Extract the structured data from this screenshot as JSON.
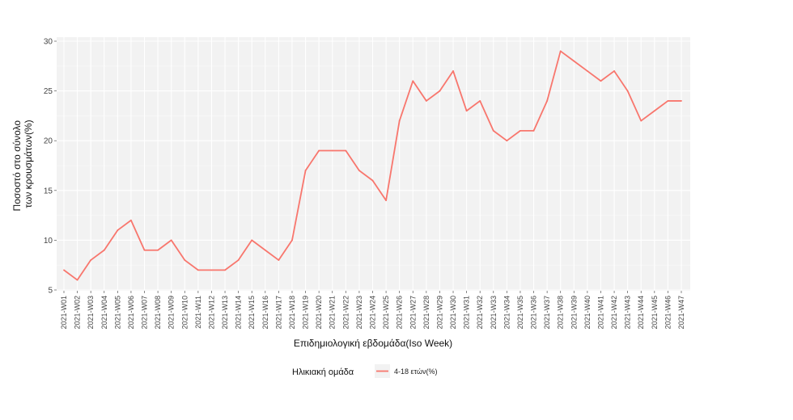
{
  "chart_data": {
    "type": "line",
    "title": "",
    "xlabel": "Επιδημιολογική εβδομάδα(Iso Week)",
    "ylabel_lines": [
      "Ποσοστό στο σύνολο",
      "των κρουσμάτων(%)"
    ],
    "ylim": [
      5,
      30
    ],
    "yticks": [
      5,
      10,
      15,
      20,
      25,
      30
    ],
    "grid": true,
    "legend_position": "bottom",
    "legend_title": "Ηλικιακή ομάδα",
    "categories": [
      "2021-W01",
      "2021-W02",
      "2021-W03",
      "2021-W04",
      "2021-W05",
      "2021-W06",
      "2021-W07",
      "2021-W08",
      "2021-W09",
      "2021-W10",
      "2021-W11",
      "2021-W12",
      "2021-W13",
      "2021-W14",
      "2021-W15",
      "2021-W16",
      "2021-W17",
      "2021-W18",
      "2021-W19",
      "2021-W20",
      "2021-W21",
      "2021-W22",
      "2021-W23",
      "2021-W24",
      "2021-W25",
      "2021-W26",
      "2021-W27",
      "2021-W28",
      "2021-W29",
      "2021-W30",
      "2021-W31",
      "2021-W32",
      "2021-W33",
      "2021-W34",
      "2021-W35",
      "2021-W36",
      "2021-W37",
      "2021-W38",
      "2021-W39",
      "2021-W40",
      "2021-W41",
      "2021-W42",
      "2021-W43",
      "2021-W44",
      "2021-W45",
      "2021-W46",
      "2021-W47"
    ],
    "series": [
      {
        "name": "4-18 ετών(%)",
        "color": "#f8766d",
        "values": [
          7,
          6,
          8,
          9,
          11,
          12,
          9,
          9,
          10,
          8,
          7,
          7,
          7,
          8,
          10,
          9,
          8,
          10,
          17,
          19,
          19,
          19,
          17,
          16,
          14,
          22,
          26,
          24,
          25,
          27,
          23,
          24,
          21,
          20,
          21,
          21,
          24,
          29,
          28,
          27,
          26,
          27,
          25,
          22,
          23,
          24,
          24
        ]
      }
    ]
  }
}
